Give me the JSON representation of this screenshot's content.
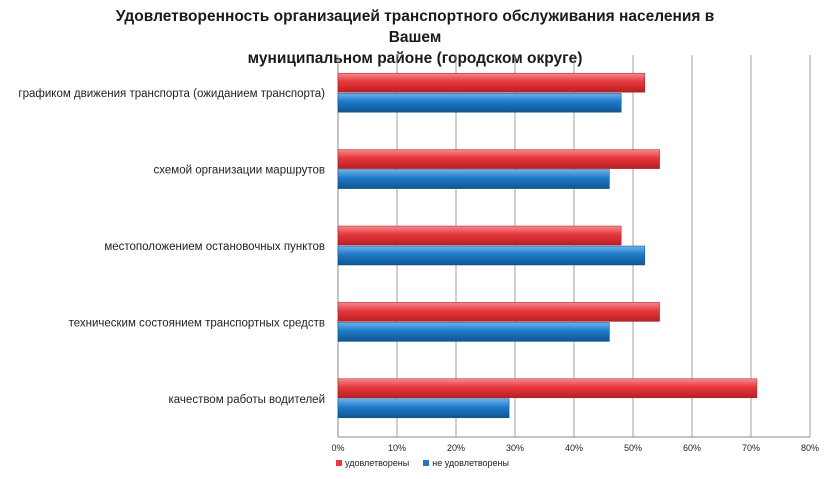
{
  "chart_data": {
    "type": "bar",
    "orientation": "horizontal",
    "title_lines": [
      "Удовлетворенность организацией транспортного обслуживания  населения в Вашем",
      "муниципальном районе (городском округе)"
    ],
    "categories": [
      "графиком движения транспорта (ожиданием транспорта)",
      "схемой организации маршрутов",
      "местоположением остановочных пунктов",
      "техническим состоянием транспортных средств",
      "качеством работы водителей"
    ],
    "series": [
      {
        "name": "удовлетворены",
        "color": "#e8383d",
        "values": [
          52,
          54.5,
          48,
          54.5,
          71
        ]
      },
      {
        "name": "не удовлетворены",
        "color": "#1f77c4",
        "values": [
          48,
          46,
          52,
          46,
          29
        ]
      }
    ],
    "xlim": [
      0,
      80
    ],
    "xticks": [
      "0%",
      "10%",
      "20%",
      "30%",
      "40%",
      "50%",
      "60%",
      "70%",
      "80%"
    ],
    "grid": true,
    "legend_position": "bottom"
  }
}
